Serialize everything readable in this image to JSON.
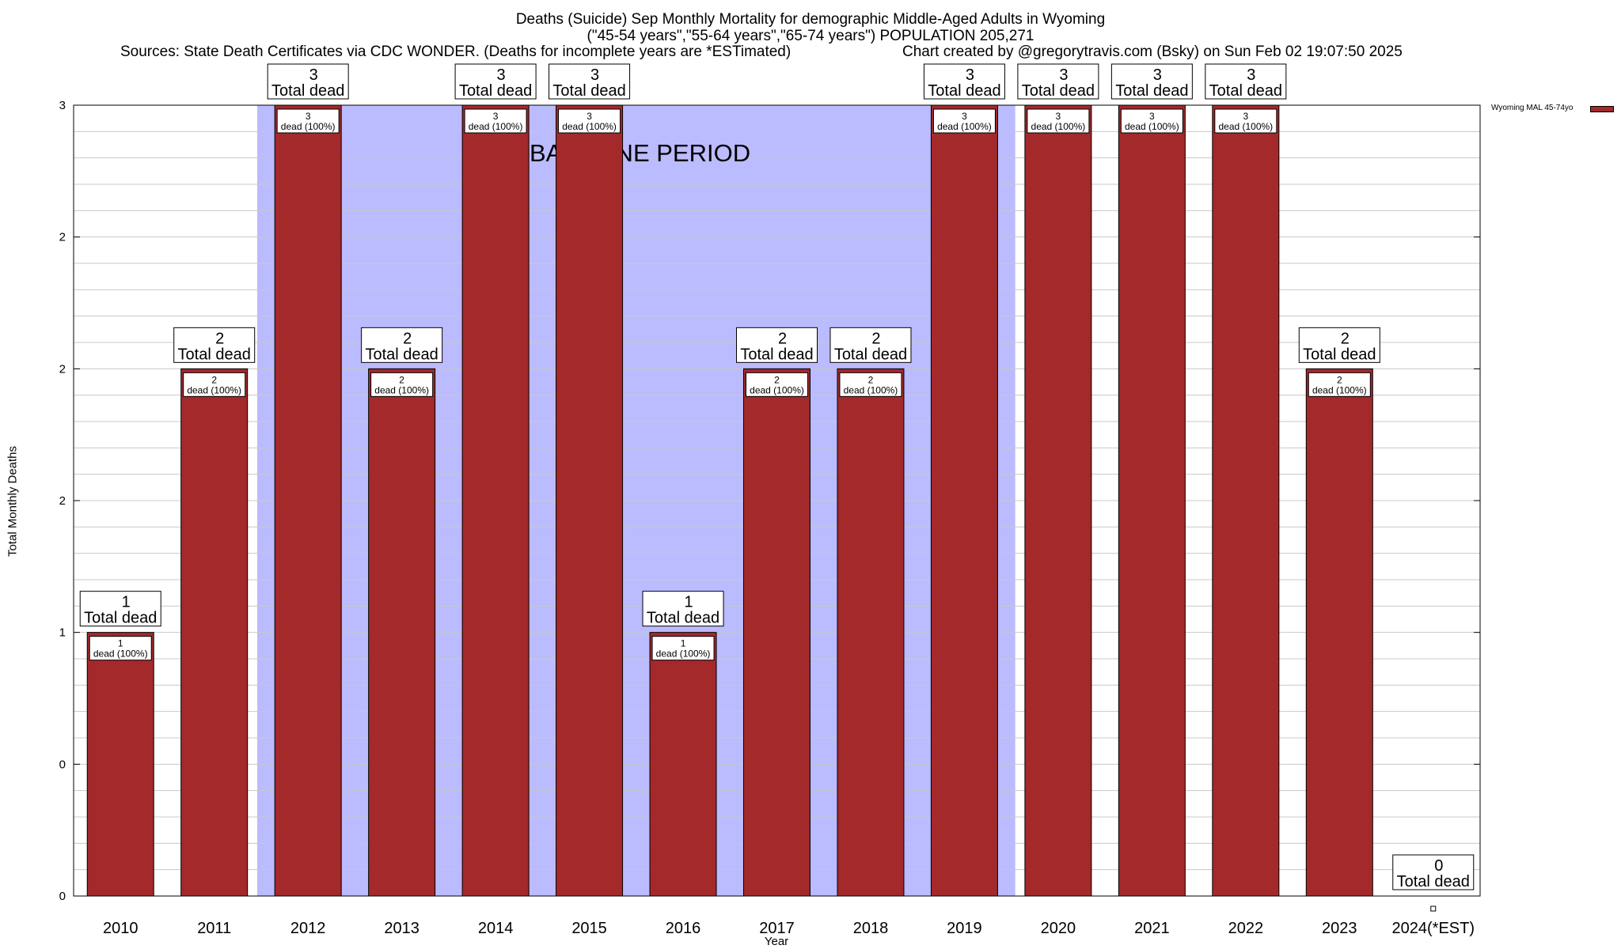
{
  "chart_data": {
    "type": "bar",
    "title": "Deaths (Suicide) Sep Monthly Mortality for demographic Middle-Aged Adults in Wyoming",
    "subtitle": "(\"45-54 years\",\"55-64 years\",\"65-74 years\") POPULATION 205,271",
    "source_left": "Sources: State Death Certificates via CDC WONDER. (Deaths for incomplete years are *ESTimated)",
    "source_right": "Chart created by @gregorytravis.com (Bsky) on Sun Feb 02 19:07:50 2025",
    "xlabel": "Year",
    "ylabel": "Total Monthly Deaths",
    "ylim": [
      0,
      3
    ],
    "y_tick_labels": [
      "0",
      "0",
      "1",
      "2",
      "2",
      "2",
      "3"
    ],
    "categories": [
      "2010",
      "2011",
      "2012",
      "2013",
      "2014",
      "2015",
      "2016",
      "2017",
      "2018",
      "2019",
      "2020",
      "2021",
      "2022",
      "2023",
      "2024(*EST)"
    ],
    "values": [
      1,
      2,
      3,
      2,
      3,
      3,
      1,
      2,
      2,
      3,
      3,
      3,
      3,
      2,
      0
    ],
    "series": [
      {
        "name": "Wyoming MAL 45-74yo",
        "values": [
          1,
          2,
          3,
          2,
          3,
          3,
          1,
          2,
          2,
          3,
          3,
          3,
          3,
          2,
          0
        ]
      }
    ],
    "total_label": "Total dead",
    "inner_label": "dead (100%)",
    "baseline_label": "BASELINE PERIOD",
    "baseline_range": [
      "2012",
      "2019"
    ],
    "colors": {
      "bar": "#a3292b",
      "baseline": "#bbbbff",
      "grid": "#c8c8c8"
    },
    "legend_placement": "top-right",
    "grid": true
  }
}
